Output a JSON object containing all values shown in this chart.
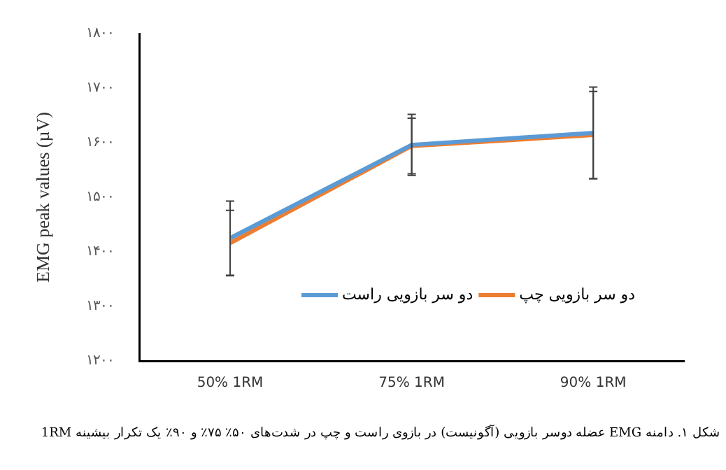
{
  "chart_data": {
    "type": "line",
    "categories": [
      "50% 1RM",
      "75% 1RM",
      "90% 1RM"
    ],
    "ylabel": "EMG peak values (µV)",
    "ylim": [
      1200,
      1800
    ],
    "yticks": [
      {
        "value": 1200,
        "label": "۱۲۰۰"
      },
      {
        "value": 1300,
        "label": "۱۳۰۰"
      },
      {
        "value": 1400,
        "label": "۱۴۰۰"
      },
      {
        "value": 1500,
        "label": "۱۵۰۰"
      },
      {
        "value": 1600,
        "label": "۱۶۰۰"
      },
      {
        "value": 1700,
        "label": "۱۷۰۰"
      },
      {
        "value": 1800,
        "label": "۱۸۰۰"
      }
    ],
    "series": [
      {
        "name": "دو سر بازویی راست",
        "color": "#5b9bd5",
        "values": [
          1425,
          1596,
          1618
        ],
        "errors": [
          68,
          56,
          84
        ]
      },
      {
        "name": "دو سر بازویی چپ",
        "color": "#ed7d31",
        "values": [
          1416,
          1594,
          1614
        ],
        "errors": [
          60,
          51,
          80
        ]
      }
    ],
    "grid": false,
    "legend": "bottom right",
    "marker": "none",
    "line_style": "solid",
    "annotations": [
      "شکل ۱. دامنه EMG عضله دوسر بازویی (آگونیست) در بازوی راست و چپ در شدت‌های ۵۰٪ ۷۵٪ و ۹۰٪ یک تکرار بیشینه 1RM"
    ]
  }
}
